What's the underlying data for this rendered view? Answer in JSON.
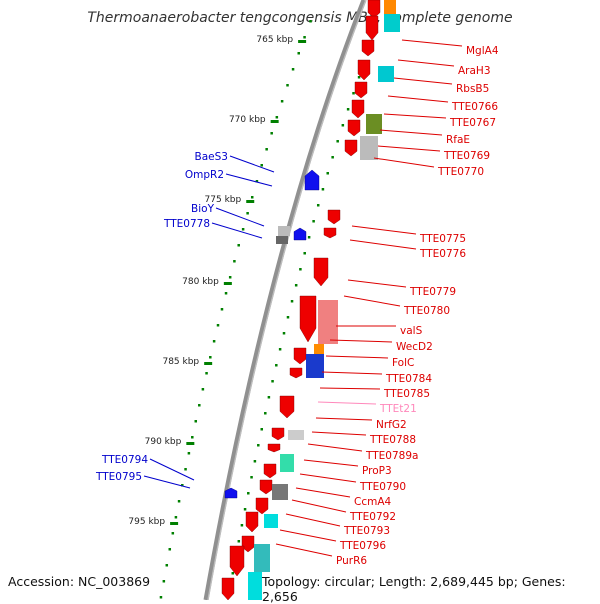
{
  "title": "Thermoanaerobacter tengcongensis MB4, complete genome",
  "footer": {
    "accession": "Accession: NC_003869",
    "stats": "Topology: circular; Length: 2,689,445 bp; Genes: 2,656"
  },
  "colors": {
    "backbone": "#808080",
    "forward_gene": "#ff0000",
    "reverse_gene": "#0000ff",
    "right_label": "#dd0000",
    "left_label": "#0000cc",
    "rna_label": "#ff88bb",
    "tick": "#008000"
  },
  "ruler": [
    "765 kbp",
    "770 kbp",
    "775 kbp",
    "780 kbp",
    "785 kbp",
    "790 kbp",
    "795 kbp"
  ],
  "right_labels": [
    "MglA4",
    "AraH3",
    "RbsB5",
    "TTE0766",
    "TTE0767",
    "RfaE",
    "TTE0769",
    "TTE0770",
    "TTE0775",
    "TTE0776",
    "TTE0779",
    "TTE0780",
    "valS",
    "WecD2",
    "FolC",
    "TTE0784",
    "TTE0785",
    "TTEt21",
    "NrfG2",
    "TTE0788",
    "TTE0789a",
    "ProP3",
    "TTE0790",
    "CcmA4",
    "TTE0792",
    "TTE0793",
    "TTE0796",
    "PurR6"
  ],
  "left_labels": [
    "BaeS3",
    "OmpR2",
    "BioY",
    "TTE0778",
    "TTE0794",
    "TTE0795"
  ]
}
